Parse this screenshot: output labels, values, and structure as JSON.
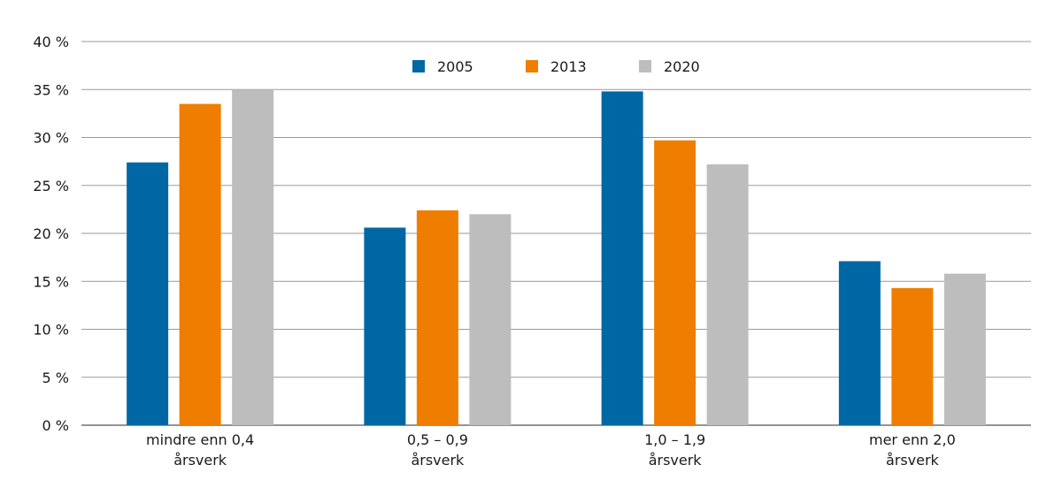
{
  "chart_data": {
    "type": "bar",
    "categories": [
      [
        "mindre enn 0,4",
        "årsverk"
      ],
      [
        "0,5 – 0,9",
        "årsverk"
      ],
      [
        "1,0 – 1,9",
        "årsverk"
      ],
      [
        "mer enn 2,0",
        "årsverk"
      ]
    ],
    "series": [
      {
        "name": "2005",
        "color": "#0067a5",
        "values": [
          27.4,
          20.6,
          34.8,
          17.1
        ]
      },
      {
        "name": "2013",
        "color": "#ef7d00",
        "values": [
          33.5,
          22.4,
          29.7,
          14.3
        ]
      },
      {
        "name": "2020",
        "color": "#bdbdbd",
        "values": [
          35.0,
          22.0,
          27.2,
          15.8
        ]
      }
    ],
    "y_ticks": [
      "0 %",
      "5 %",
      "10 %",
      "15 %",
      "20 %",
      "25 %",
      "30 %",
      "35 %",
      "40 %"
    ],
    "ylim": [
      0,
      40
    ],
    "grid": true,
    "legend_position": "top-center",
    "title": "",
    "xlabel": "",
    "ylabel": ""
  }
}
